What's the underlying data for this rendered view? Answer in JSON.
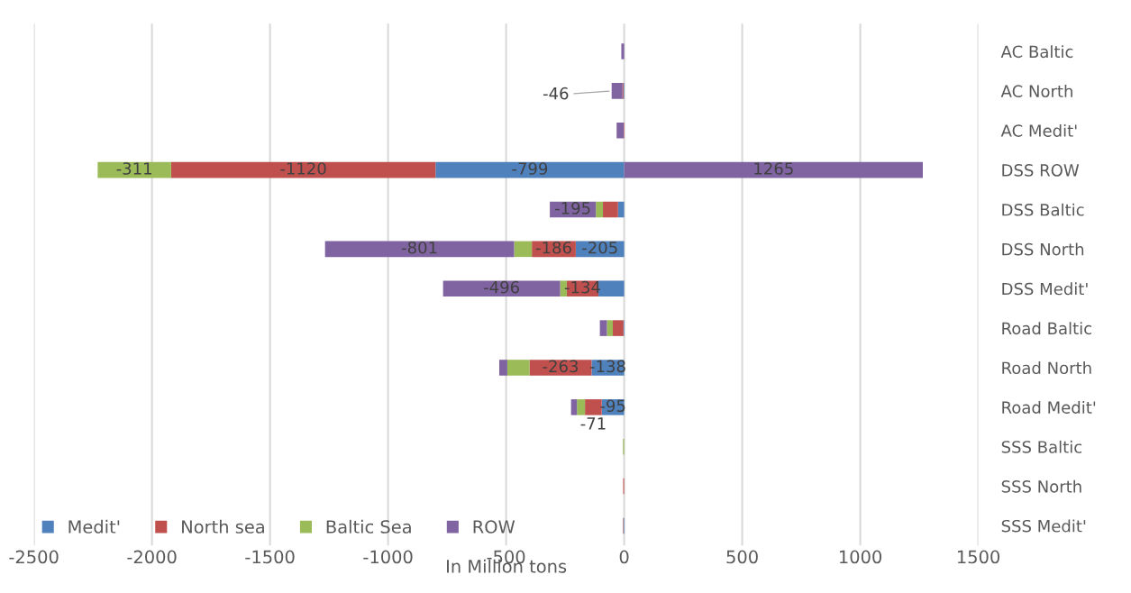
{
  "chart_data": {
    "type": "bar",
    "orientation": "horizontal",
    "stacked": true,
    "xlabel": "In Million tons",
    "categories": [
      "AC Baltic",
      "AC North",
      "AC Medit'",
      "DSS ROW",
      "DSS Baltic",
      "DSS North",
      "DSS Medit'",
      "Road Baltic",
      "Road North",
      "Road Medit'",
      "SSS Baltic",
      "SSS North",
      "SSS Medit'"
    ],
    "series": [
      {
        "name": "Medit'",
        "color": "#4f81bd",
        "values": [
          null,
          -3,
          null,
          -799,
          -26,
          -205,
          -109,
          -3,
          -138,
          -95,
          null,
          null,
          -3
        ],
        "value_labels": [
          null,
          null,
          null,
          "-799",
          null,
          "-205",
          null,
          null,
          "-138",
          "-95",
          null,
          null,
          null
        ]
      },
      {
        "name": "North sea",
        "color": "#c0504d",
        "values": [
          null,
          -4,
          -2,
          -1120,
          -64,
          -186,
          -134,
          -45,
          -263,
          -71,
          null,
          -4,
          -2
        ],
        "value_labels": [
          null,
          null,
          null,
          "-1120",
          null,
          "-186",
          "-134",
          null,
          "-263",
          "-71",
          null,
          null,
          null
        ]
      },
      {
        "name": "Baltic Sea",
        "color": "#9bbb59",
        "values": [
          null,
          null,
          null,
          -311,
          -30,
          -75,
          -28,
          -25,
          -94,
          -34,
          -5,
          null,
          null
        ],
        "value_labels": [
          null,
          null,
          null,
          "-311",
          null,
          null,
          null,
          null,
          null,
          null,
          null,
          null,
          null
        ]
      },
      {
        "name": "ROW",
        "color": "#8064a2",
        "values": [
          -12,
          -46,
          -30,
          1265,
          -195,
          -801,
          -496,
          -30,
          -34,
          -25,
          null,
          null,
          null
        ],
        "value_labels": [
          null,
          "-46",
          null,
          "1265",
          "-195",
          "-801",
          "-496",
          null,
          null,
          null,
          null,
          null,
          null
        ]
      }
    ],
    "xlim": [
      -2500,
      1500
    ],
    "xticks": [
      -2500,
      -2000,
      -1500,
      -1000,
      -500,
      0,
      500,
      1000,
      1500
    ],
    "grid": "x",
    "legend": "bottom left"
  }
}
